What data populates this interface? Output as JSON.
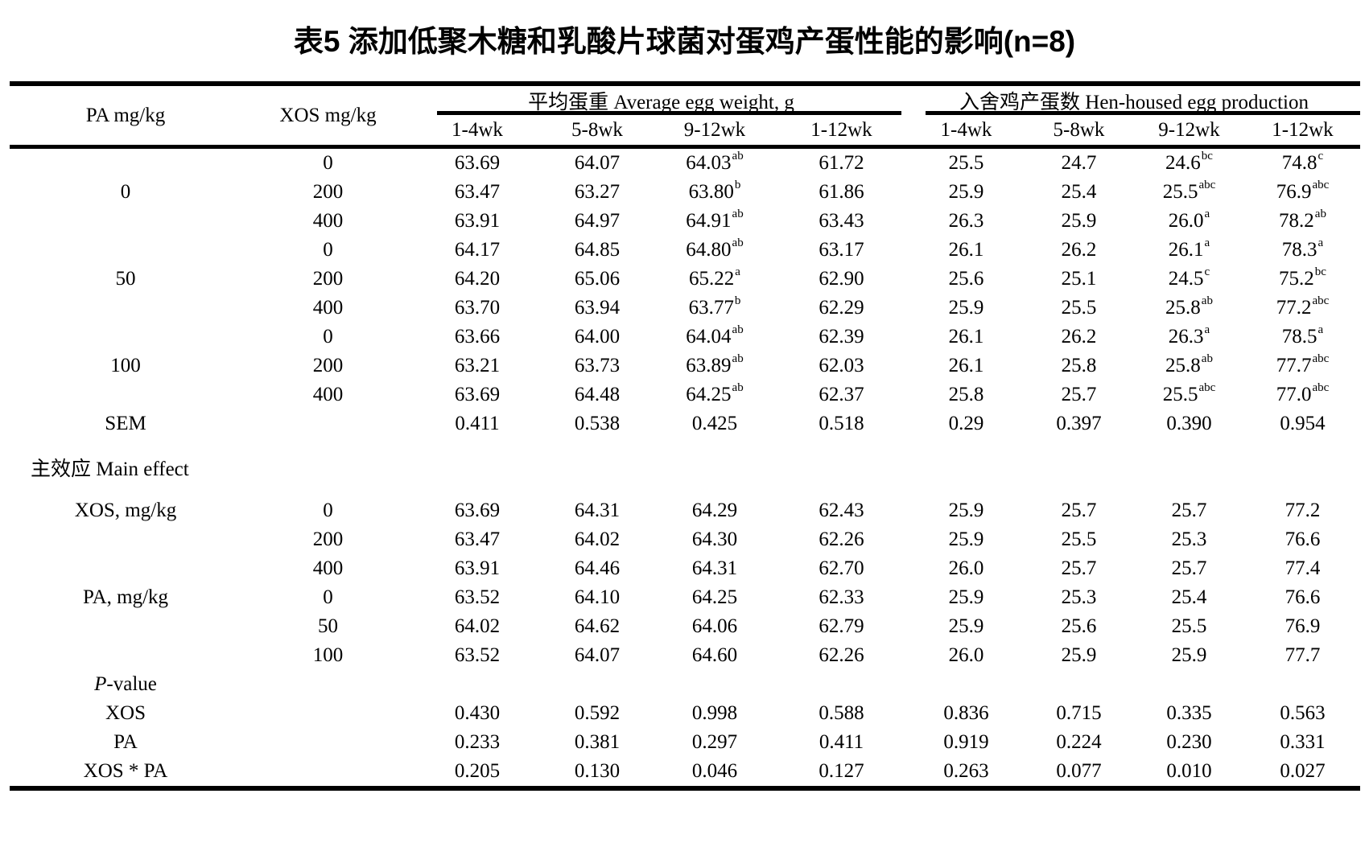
{
  "title": "表5 添加低聚木糖和乳酸片球菌对蛋鸡产蛋性能的影响(n=8)",
  "header": {
    "pa_col": "PA mg/kg",
    "xos_col": "XOS mg/kg",
    "group_egg_weight": "平均蛋重 Average egg weight, g",
    "group_egg_production": "入舍鸡产蛋数 Hen-housed egg production",
    "subcols": [
      "1-4wk",
      "5-8wk",
      "9-12wk",
      "1-12wk",
      "1-4wk",
      "5-8wk",
      "9-12wk",
      "1-12wk"
    ]
  },
  "rows": [
    {
      "type": "data",
      "pa": "",
      "xos": "0",
      "cells": [
        {
          "v": "63.69"
        },
        {
          "v": "64.07"
        },
        {
          "v": "64.03",
          "s": "ab"
        },
        {
          "v": "61.72"
        },
        {
          "v": "25.5"
        },
        {
          "v": "24.7"
        },
        {
          "v": "24.6",
          "s": "bc"
        },
        {
          "v": "74.8",
          "s": "c"
        }
      ]
    },
    {
      "type": "data",
      "pa": "0",
      "xos": "200",
      "cells": [
        {
          "v": "63.47"
        },
        {
          "v": "63.27"
        },
        {
          "v": "63.80",
          "s": "b"
        },
        {
          "v": "61.86"
        },
        {
          "v": "25.9"
        },
        {
          "v": "25.4"
        },
        {
          "v": "25.5",
          "s": "abc"
        },
        {
          "v": "76.9",
          "s": "abc"
        }
      ]
    },
    {
      "type": "data",
      "pa": "",
      "xos": "400",
      "cells": [
        {
          "v": "63.91"
        },
        {
          "v": "64.97"
        },
        {
          "v": "64.91",
          "s": "ab"
        },
        {
          "v": "63.43"
        },
        {
          "v": "26.3"
        },
        {
          "v": "25.9"
        },
        {
          "v": "26.0",
          "s": "a"
        },
        {
          "v": "78.2",
          "s": "ab"
        }
      ]
    },
    {
      "type": "data",
      "pa": "",
      "xos": "0",
      "cells": [
        {
          "v": "64.17"
        },
        {
          "v": "64.85"
        },
        {
          "v": "64.80",
          "s": "ab"
        },
        {
          "v": "63.17"
        },
        {
          "v": "26.1"
        },
        {
          "v": "26.2"
        },
        {
          "v": "26.1",
          "s": "a"
        },
        {
          "v": "78.3",
          "s": "a"
        }
      ]
    },
    {
      "type": "data",
      "pa": "50",
      "xos": "200",
      "cells": [
        {
          "v": "64.20"
        },
        {
          "v": "65.06"
        },
        {
          "v": "65.22",
          "s": "a"
        },
        {
          "v": "62.90"
        },
        {
          "v": "25.6"
        },
        {
          "v": "25.1"
        },
        {
          "v": "24.5",
          "s": "c"
        },
        {
          "v": "75.2",
          "s": "bc"
        }
      ]
    },
    {
      "type": "data",
      "pa": "",
      "xos": "400",
      "cells": [
        {
          "v": "63.70"
        },
        {
          "v": "63.94"
        },
        {
          "v": "63.77",
          "s": "b"
        },
        {
          "v": "62.29"
        },
        {
          "v": "25.9"
        },
        {
          "v": "25.5"
        },
        {
          "v": "25.8",
          "s": "ab"
        },
        {
          "v": "77.2",
          "s": "abc"
        }
      ]
    },
    {
      "type": "data",
      "pa": "",
      "xos": "0",
      "cells": [
        {
          "v": "63.66"
        },
        {
          "v": "64.00"
        },
        {
          "v": "64.04",
          "s": "ab"
        },
        {
          "v": "62.39"
        },
        {
          "v": "26.1"
        },
        {
          "v": "26.2"
        },
        {
          "v": "26.3",
          "s": "a"
        },
        {
          "v": "78.5",
          "s": "a"
        }
      ]
    },
    {
      "type": "data",
      "pa": "100",
      "xos": "200",
      "cells": [
        {
          "v": "63.21"
        },
        {
          "v": "63.73"
        },
        {
          "v": "63.89",
          "s": "ab"
        },
        {
          "v": "62.03"
        },
        {
          "v": "26.1"
        },
        {
          "v": "25.8"
        },
        {
          "v": "25.8",
          "s": "ab"
        },
        {
          "v": "77.7",
          "s": "abc"
        }
      ]
    },
    {
      "type": "data",
      "pa": "",
      "xos": "400",
      "cells": [
        {
          "v": "63.69"
        },
        {
          "v": "64.48"
        },
        {
          "v": "64.25",
          "s": "ab"
        },
        {
          "v": "62.37"
        },
        {
          "v": "25.8"
        },
        {
          "v": "25.7"
        },
        {
          "v": "25.5",
          "s": "abc"
        },
        {
          "v": "77.0",
          "s": "abc"
        }
      ]
    },
    {
      "type": "data",
      "pa": "SEM",
      "xos": "",
      "cells": [
        {
          "v": "0.411"
        },
        {
          "v": "0.538"
        },
        {
          "v": "0.425"
        },
        {
          "v": "0.518"
        },
        {
          "v": "0.29"
        },
        {
          "v": "0.397"
        },
        {
          "v": "0.390"
        },
        {
          "v": "0.954"
        }
      ]
    },
    {
      "type": "section",
      "label": "主效应 Main effect"
    },
    {
      "type": "data",
      "pa": "XOS, mg/kg",
      "xos": "0",
      "cells": [
        {
          "v": "63.69"
        },
        {
          "v": "64.31"
        },
        {
          "v": "64.29"
        },
        {
          "v": "62.43"
        },
        {
          "v": "25.9"
        },
        {
          "v": "25.7"
        },
        {
          "v": "25.7"
        },
        {
          "v": "77.2"
        }
      ]
    },
    {
      "type": "data",
      "pa": "",
      "xos": "200",
      "cells": [
        {
          "v": "63.47"
        },
        {
          "v": "64.02"
        },
        {
          "v": "64.30"
        },
        {
          "v": "62.26"
        },
        {
          "v": "25.9"
        },
        {
          "v": "25.5"
        },
        {
          "v": "25.3"
        },
        {
          "v": "76.6"
        }
      ]
    },
    {
      "type": "data",
      "pa": "",
      "xos": "400",
      "cells": [
        {
          "v": "63.91"
        },
        {
          "v": "64.46"
        },
        {
          "v": "64.31"
        },
        {
          "v": "62.70"
        },
        {
          "v": "26.0"
        },
        {
          "v": "25.7"
        },
        {
          "v": "25.7"
        },
        {
          "v": "77.4"
        }
      ]
    },
    {
      "type": "data",
      "pa": "PA, mg/kg",
      "xos": "0",
      "cells": [
        {
          "v": "63.52"
        },
        {
          "v": "64.10"
        },
        {
          "v": "64.25"
        },
        {
          "v": "62.33"
        },
        {
          "v": "25.9"
        },
        {
          "v": "25.3"
        },
        {
          "v": "25.4"
        },
        {
          "v": "76.6"
        }
      ]
    },
    {
      "type": "data",
      "pa": "",
      "xos": "50",
      "cells": [
        {
          "v": "64.02"
        },
        {
          "v": "64.62"
        },
        {
          "v": "64.06"
        },
        {
          "v": "62.79"
        },
        {
          "v": "25.9"
        },
        {
          "v": "25.6"
        },
        {
          "v": "25.5"
        },
        {
          "v": "76.9"
        }
      ]
    },
    {
      "type": "data",
      "pa": "",
      "xos": "100",
      "cells": [
        {
          "v": "63.52"
        },
        {
          "v": "64.07"
        },
        {
          "v": "64.60"
        },
        {
          "v": "62.26"
        },
        {
          "v": "26.0"
        },
        {
          "v": "25.9"
        },
        {
          "v": "25.9"
        },
        {
          "v": "77.7"
        }
      ]
    },
    {
      "type": "pheader",
      "label_italic": "P",
      "label_rest": "-value"
    },
    {
      "type": "data",
      "pa": "XOS",
      "xos": "",
      "cells": [
        {
          "v": "0.430"
        },
        {
          "v": "0.592"
        },
        {
          "v": "0.998"
        },
        {
          "v": "0.588"
        },
        {
          "v": "0.836"
        },
        {
          "v": "0.715"
        },
        {
          "v": "0.335"
        },
        {
          "v": "0.563"
        }
      ]
    },
    {
      "type": "data",
      "pa": "PA",
      "xos": "",
      "cells": [
        {
          "v": "0.233"
        },
        {
          "v": "0.381"
        },
        {
          "v": "0.297"
        },
        {
          "v": "0.411"
        },
        {
          "v": "0.919"
        },
        {
          "v": "0.224"
        },
        {
          "v": "0.230"
        },
        {
          "v": "0.331"
        }
      ]
    },
    {
      "type": "data",
      "pa": "XOS * PA",
      "xos": "",
      "cells": [
        {
          "v": "0.205"
        },
        {
          "v": "0.130"
        },
        {
          "v": "0.046"
        },
        {
          "v": "0.127"
        },
        {
          "v": "0.263"
        },
        {
          "v": "0.077"
        },
        {
          "v": "0.010"
        },
        {
          "v": "0.027"
        }
      ]
    }
  ]
}
